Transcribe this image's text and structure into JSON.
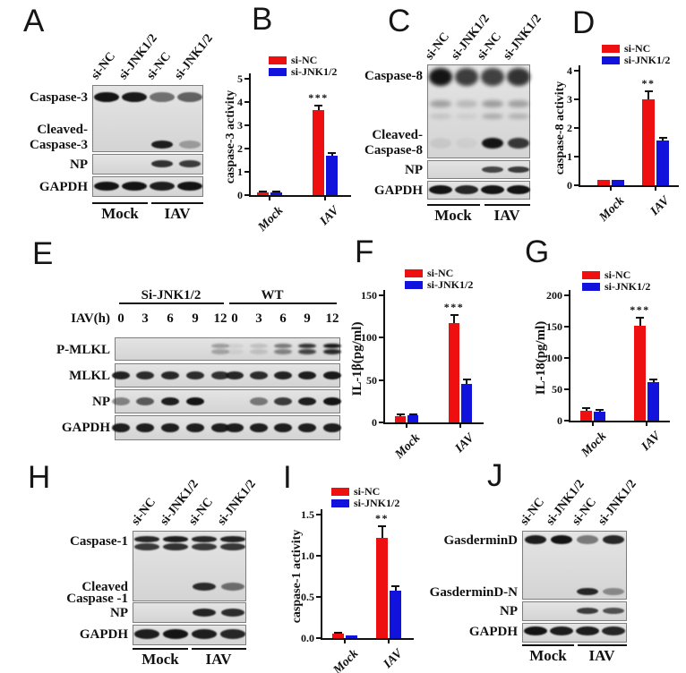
{
  "colors": {
    "red": "#ee1010",
    "blue": "#1212dd",
    "band": "#141414",
    "blot_bg": "#dcdcdc",
    "axis": "#111111"
  },
  "blots": [
    {
      "id": "A",
      "letter": "A",
      "lane_labels": [
        "si-NC",
        "si-JNK1/2",
        "si-NC",
        "si-JNK1/2"
      ],
      "groups": [
        "Mock",
        "IAV"
      ],
      "sections": [
        {
          "rows": [
            {
              "label": [
                "Caspase-3"
              ],
              "bands": [
                1,
                0.97,
                0.55,
                0.62
              ]
            },
            {
              "label": [
                "Cleaved-",
                "Caspase-3"
              ],
              "bands": [
                0,
                0,
                0.95,
                0.3
              ]
            }
          ]
        },
        {
          "rows": [
            {
              "label": [
                "NP"
              ],
              "bands": [
                0,
                0,
                0.85,
                0.8
              ]
            }
          ]
        },
        {
          "rows": [
            {
              "label": [
                "GAPDH"
              ],
              "bands": [
                1,
                1,
                0.95,
                1
              ]
            }
          ]
        }
      ]
    },
    {
      "id": "C",
      "letter": "C",
      "lane_labels": [
        "si-NC",
        "si-JNK1/2",
        "si-NC",
        "si-JNK1/2"
      ],
      "groups": [
        "Mock",
        "IAV"
      ],
      "sections": [
        {
          "rows": [
            {
              "label": [
                "Caspase-8"
              ],
              "bands": [
                1,
                0.8,
                0.78,
                0.85
              ]
            },
            {
              "label": [],
              "bands": [
                0.3,
                0.18,
                0.32,
                0.3
              ]
            },
            {
              "label": [],
              "bands": [
                0.12,
                0.08,
                0.25,
                0.22
              ]
            },
            {
              "label": [
                "Cleaved-",
                "Caspase-8"
              ],
              "bands": [
                0.07,
                0.04,
                1,
                0.82
              ]
            }
          ]
        },
        {
          "rows": [
            {
              "label": [
                "NP"
              ],
              "bands": [
                0,
                0,
                0.75,
                0.8
              ]
            }
          ]
        },
        {
          "rows": [
            {
              "label": [
                "GAPDH"
              ],
              "bands": [
                1,
                0.9,
                1,
                1
              ]
            }
          ]
        }
      ]
    },
    {
      "id": "E",
      "letter": "E",
      "header": {
        "left_group": "Si-JNK1/2",
        "right_group": "WT",
        "axis_label": "IAV(h)",
        "timepoints": [
          "0",
          "3",
          "6",
          "9",
          "12",
          "0",
          "3",
          "6",
          "9",
          "12"
        ]
      },
      "sections": [
        {
          "rows": [
            {
              "label": [
                "P-MLKL"
              ],
              "bands": [
                0,
                0,
                0,
                0,
                0.32,
                0.07,
                0.15,
                0.5,
                0.85,
                1
              ]
            }
          ]
        },
        {
          "rows": [
            {
              "label": [
                "MLKL"
              ],
              "bands": [
                0.92,
                0.88,
                0.9,
                0.88,
                0.85,
                0.9,
                0.88,
                0.92,
                0.95,
                0.97
              ]
            }
          ]
        },
        {
          "rows": [
            {
              "label": [
                "NP"
              ],
              "bands": [
                0.45,
                0.65,
                0.95,
                1,
                0,
                0,
                0.5,
                0.8,
                0.95,
                1
              ]
            }
          ]
        },
        {
          "rows": [
            {
              "label": [
                "GAPDH"
              ],
              "bands": [
                0.95,
                0.95,
                0.95,
                0.95,
                0.95,
                0.95,
                0.95,
                0.95,
                0.95,
                0.95
              ]
            }
          ]
        }
      ]
    },
    {
      "id": "H",
      "letter": "H",
      "lane_labels": [
        "si-NC",
        "si-JNK1/2",
        "si-NC",
        "si-JNK1/2"
      ],
      "groups": [
        "Mock",
        "IAV"
      ],
      "sections": [
        {
          "rows": [
            {
              "label": [
                "Caspase-1"
              ],
              "bands": [
                0.9,
                0.95,
                0.9,
                0.92
              ]
            },
            {
              "label": [
                "Cleaved",
                "Caspase -1"
              ],
              "bands": [
                0,
                0,
                0.88,
                0.55
              ]
            }
          ]
        },
        {
          "rows": [
            {
              "label": [
                "NP"
              ],
              "bands": [
                0,
                0,
                0.92,
                0.88
              ]
            }
          ]
        },
        {
          "rows": [
            {
              "label": [
                "GAPDH"
              ],
              "bands": [
                0.95,
                1,
                0.95,
                0.9
              ]
            }
          ]
        }
      ]
    },
    {
      "id": "J",
      "letter": "J",
      "lane_labels": [
        "si-NC",
        "si-JNK1/2",
        "si-NC",
        "si-JNK1/2"
      ],
      "groups": [
        "Mock",
        "IAV"
      ],
      "sections": [
        {
          "rows": [
            {
              "label": [
                "GasderminD"
              ],
              "bands": [
                0.95,
                1,
                0.5,
                0.9
              ]
            },
            {
              "label": [
                "GasderminD-N"
              ],
              "bands": [
                0,
                0,
                0.9,
                0.4
              ]
            }
          ]
        },
        {
          "rows": [
            {
              "label": [
                "NP"
              ],
              "bands": [
                0,
                0,
                0.8,
                0.7
              ]
            }
          ]
        },
        {
          "rows": [
            {
              "label": [
                "GAPDH"
              ],
              "bands": [
                1,
                0.95,
                0.95,
                0.9
              ]
            }
          ]
        }
      ]
    }
  ],
  "chart_data": [
    {
      "id": "B",
      "letter": "B",
      "type": "bar",
      "title": "",
      "ylabel": "caspase-3 activity",
      "ylim": [
        0,
        5
      ],
      "yticks": [
        0,
        1,
        2,
        3,
        4,
        5
      ],
      "ytick_labels": [
        "0",
        "1",
        "2",
        "3",
        "4",
        "5"
      ],
      "categories": [
        "Mock",
        "IAV"
      ],
      "series": [
        {
          "name": "si-NC",
          "color": "red",
          "values": [
            0.12,
            3.65
          ],
          "errors": [
            0.05,
            0.2
          ]
        },
        {
          "name": "si-JNK1/2",
          "color": "blue",
          "values": [
            0.12,
            1.7
          ],
          "errors": [
            0.04,
            0.1
          ]
        }
      ],
      "significance": {
        "label": "***",
        "category": "IAV",
        "series": "si-NC"
      },
      "legend_position": "top-right",
      "grid": false
    },
    {
      "id": "D",
      "letter": "D",
      "type": "bar",
      "title": "",
      "ylabel": "caspase-8 activity",
      "ylim": [
        0,
        4
      ],
      "yticks": [
        0,
        1,
        2,
        3,
        4
      ],
      "ytick_labels": [
        "0",
        "1",
        "2",
        "3",
        "4"
      ],
      "categories": [
        "Mock",
        "IAV"
      ],
      "series": [
        {
          "name": "si-NC",
          "color": "red",
          "values": [
            0.18,
            3.0
          ],
          "errors": [
            0.03,
            0.28
          ]
        },
        {
          "name": "si-JNK1/2",
          "color": "blue",
          "values": [
            0.2,
            1.55
          ],
          "errors": [
            0.03,
            0.1
          ]
        }
      ],
      "significance": {
        "label": "**",
        "category": "IAV",
        "series": "si-NC"
      },
      "legend_position": "top-right",
      "grid": false
    },
    {
      "id": "F",
      "letter": "F",
      "type": "bar",
      "title": "",
      "ylabel": "IL-1β(pg/ml)",
      "ylim": [
        0,
        150
      ],
      "yticks": [
        0,
        50,
        100,
        150
      ],
      "ytick_labels": [
        "0",
        "50",
        "100",
        "150"
      ],
      "categories": [
        "Mock",
        "IAV"
      ],
      "series": [
        {
          "name": "si-NC",
          "color": "red",
          "values": [
            7,
            117
          ],
          "errors": [
            3,
            10
          ]
        },
        {
          "name": "si-JNK1/2",
          "color": "blue",
          "values": [
            8,
            45
          ],
          "errors": [
            2,
            6
          ]
        }
      ],
      "significance": {
        "label": "***",
        "category": "IAV",
        "series": "si-NC"
      },
      "legend_position": "top-right",
      "grid": false
    },
    {
      "id": "G",
      "letter": "G",
      "type": "bar",
      "title": "",
      "ylabel": "IL-18(pg/ml)",
      "ylim": [
        0,
        200
      ],
      "yticks": [
        0,
        50,
        100,
        150,
        200
      ],
      "ytick_labels": [
        "0",
        "50",
        "100",
        "150",
        "200"
      ],
      "categories": [
        "Mock",
        "IAV"
      ],
      "series": [
        {
          "name": "si-NC",
          "color": "red",
          "values": [
            16,
            151
          ],
          "errors": [
            4,
            14
          ]
        },
        {
          "name": "si-JNK1/2",
          "color": "blue",
          "values": [
            14,
            62
          ],
          "errors": [
            3,
            4
          ]
        }
      ],
      "significance": {
        "label": "***",
        "category": "IAV",
        "series": "si-NC"
      },
      "legend_position": "top-right",
      "grid": false
    },
    {
      "id": "I",
      "letter": "I",
      "type": "bar",
      "title": "",
      "ylabel": "caspase-1 activity",
      "ylim": [
        0,
        1.5
      ],
      "yticks": [
        0,
        0.5,
        1,
        1.5
      ],
      "ytick_labels": [
        "0.0",
        "0.5",
        "1.0",
        "1.5"
      ],
      "categories": [
        "Mock",
        "IAV"
      ],
      "series": [
        {
          "name": "si-NC",
          "color": "red",
          "values": [
            0.05,
            1.22
          ],
          "errors": [
            0.02,
            0.14
          ]
        },
        {
          "name": "si-JNK1/2",
          "color": "blue",
          "values": [
            0.03,
            0.58
          ],
          "errors": [
            0.01,
            0.05
          ]
        }
      ],
      "significance": {
        "label": "**",
        "category": "IAV",
        "series": "si-NC"
      },
      "legend_position": "top-right",
      "grid": false
    }
  ]
}
